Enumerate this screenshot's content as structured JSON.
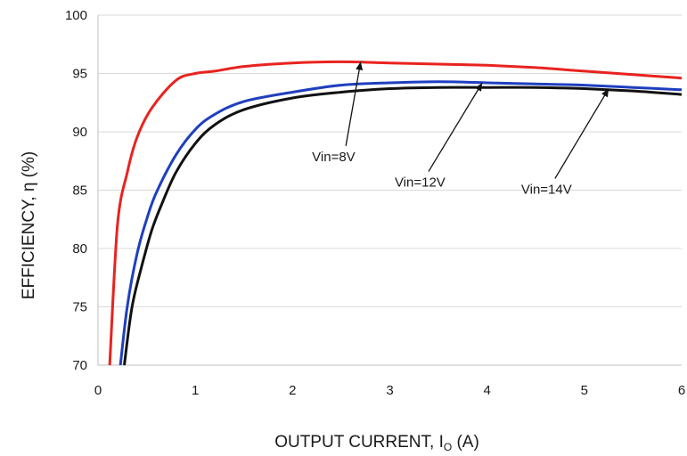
{
  "chart_data": {
    "type": "line",
    "title": "",
    "xlabel": {
      "main": "OUTPUT CURRENT, I",
      "subscript": "O",
      "suffix": " (A)"
    },
    "ylabel": "EFFICIENCY, η  (%)",
    "xlim": [
      0,
      6
    ],
    "ylim": [
      70,
      100
    ],
    "xticks": [
      "0",
      "1",
      "2",
      "3",
      "4",
      "5",
      "6"
    ],
    "yticks": [
      "70",
      "75",
      "80",
      "85",
      "90",
      "95",
      "100"
    ],
    "grid": "horizontal",
    "legend": "none",
    "series": [
      {
        "color": "#e8231f",
        "x": [
          0.12,
          0.2,
          0.3,
          0.4,
          0.55,
          0.8,
          1.0,
          1.2,
          1.5,
          2.0,
          2.5,
          3.0,
          3.5,
          4.0,
          4.5,
          5.0,
          5.5,
          6.0
        ],
        "y": [
          70.0,
          82.0,
          86.5,
          89.5,
          92.0,
          94.4,
          95.0,
          95.2,
          95.6,
          95.9,
          96.0,
          95.9,
          95.8,
          95.7,
          95.5,
          95.2,
          94.9,
          94.6
        ]
      },
      {
        "color": "#1f3fbf",
        "x": [
          0.23,
          0.3,
          0.4,
          0.5,
          0.6,
          0.8,
          1.0,
          1.2,
          1.5,
          2.0,
          2.5,
          3.0,
          3.5,
          4.0,
          4.5,
          5.0,
          5.5,
          6.0
        ],
        "y": [
          70.0,
          75.0,
          79.5,
          82.5,
          84.8,
          88.0,
          90.2,
          91.5,
          92.6,
          93.4,
          94.0,
          94.2,
          94.3,
          94.2,
          94.1,
          94.0,
          93.8,
          93.6
        ]
      },
      {
        "color": "#111111",
        "x": [
          0.27,
          0.35,
          0.45,
          0.55,
          0.65,
          0.8,
          1.0,
          1.2,
          1.5,
          2.0,
          2.5,
          3.0,
          3.5,
          4.0,
          4.5,
          5.0,
          5.5,
          6.0
        ],
        "y": [
          70.0,
          75.0,
          78.5,
          81.5,
          83.7,
          86.5,
          89.0,
          90.6,
          91.9,
          92.9,
          93.4,
          93.7,
          93.8,
          93.8,
          93.8,
          93.7,
          93.5,
          93.2
        ]
      }
    ],
    "annotations": [
      {
        "text": "Vin=8V",
        "x": 2.2,
        "y": 87.5,
        "arrow_to": [
          2.7,
          96.0
        ]
      },
      {
        "text": "Vin=12V",
        "x": 3.05,
        "y": 85.3,
        "arrow_to": [
          3.95,
          94.2
        ]
      },
      {
        "text": "Vin=14V",
        "x": 4.35,
        "y": 84.7,
        "arrow_to": [
          5.25,
          93.7
        ]
      }
    ]
  }
}
